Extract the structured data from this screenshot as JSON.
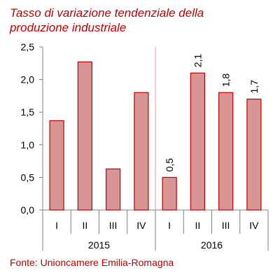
{
  "title_lines": [
    "Tasso di variazione tendenziale della",
    "produzione industriale"
  ],
  "source": "Fonte: Unioncamere Emilia-Romagna",
  "colors": {
    "accent": "#c00000",
    "bar_fill": "#d99594",
    "bar_stroke": "#c00000",
    "axis": "#808080",
    "divider": "#e6a0a0"
  },
  "chart_data": {
    "type": "bar",
    "title": "Tasso di variazione tendenziale della produzione industriale",
    "categories": [
      "I",
      "II",
      "III",
      "IV",
      "I",
      "II",
      "III",
      "IV"
    ],
    "groups": [
      {
        "label": "2015",
        "categories": [
          "I",
          "II",
          "III",
          "IV"
        ]
      },
      {
        "label": "2016",
        "categories": [
          "I",
          "II",
          "III",
          "IV"
        ]
      }
    ],
    "values": [
      1.37,
      2.27,
      0.63,
      1.8,
      0.5,
      2.1,
      1.8,
      1.7
    ],
    "data_labels": [
      null,
      null,
      null,
      null,
      "0,5",
      "2,1",
      "1,8",
      "1,7"
    ],
    "y_ticks": [
      "0,0",
      "0,5",
      "1,0",
      "1,5",
      "2,0",
      "2,5"
    ],
    "ylim": [
      0,
      2.5
    ],
    "grid": false,
    "legend": "none"
  }
}
